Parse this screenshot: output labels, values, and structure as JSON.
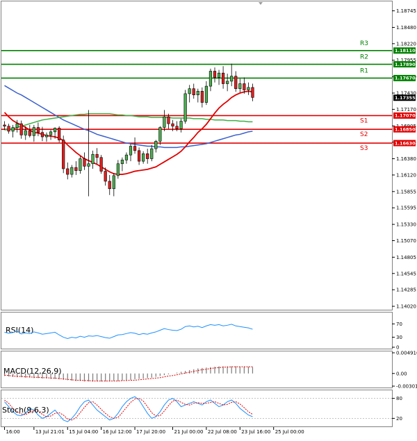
{
  "chart_data": {
    "type": "candlestick",
    "price_axis": {
      "ylim": [
        1.13965,
        1.18896
      ],
      "ticks": [
        "1.18745",
        "1.18480",
        "1.18220",
        "1.17955",
        "1.17690",
        "1.17430",
        "1.17170",
        "1.16905",
        "1.16645",
        "1.16380",
        "1.16120",
        "1.15855",
        "1.15595",
        "1.15330",
        "1.15070",
        "1.14805",
        "1.14545",
        "1.14285",
        "1.14020"
      ],
      "current_price": "1.17355"
    },
    "time_axis": {
      "labels": [
        "16:00",
        "13 Jul 21:01",
        "15 Jul 04:00",
        "16 Jul 12:00",
        "17 Jul 20:00",
        "21 Jul 00:00",
        "22 Jul 08:00",
        "23 Jul 16:00",
        "25 Jul 00:00"
      ],
      "label_bars": [
        0,
        7,
        15,
        23,
        31,
        40,
        48,
        56,
        64
      ]
    },
    "levels": [
      {
        "name": "R3",
        "value": 1.1811,
        "value_label": "1.18110",
        "color": "#008000"
      },
      {
        "name": "R2",
        "value": 1.1789,
        "value_label": "1.17890",
        "color": "#008000"
      },
      {
        "name": "R1",
        "value": 1.1767,
        "value_label": "1.17670",
        "color": "#008000"
      },
      {
        "name": "S1",
        "value": 1.1707,
        "value_label": "1.17070",
        "color": "#e00000"
      },
      {
        "name": "S2",
        "value": 1.1685,
        "value_label": "1.16850",
        "color": "#e00000"
      },
      {
        "name": "S3",
        "value": 1.1663,
        "value_label": "1.16630",
        "color": "#e00000"
      }
    ],
    "candles": [
      [
        1.1692,
        1.1698,
        1.1684,
        1.169
      ],
      [
        1.169,
        1.1694,
        1.1678,
        1.1682
      ],
      [
        1.1682,
        1.1692,
        1.1672,
        1.1688
      ],
      [
        1.1688,
        1.17,
        1.168,
        1.1694
      ],
      [
        1.1694,
        1.1699,
        1.167,
        1.1676
      ],
      [
        1.1676,
        1.169,
        1.1668,
        1.1683
      ],
      [
        1.1683,
        1.1692,
        1.1672,
        1.1675
      ],
      [
        1.1675,
        1.1692,
        1.1665,
        1.1688
      ],
      [
        1.1688,
        1.1696,
        1.1674,
        1.168
      ],
      [
        1.168,
        1.1689,
        1.1666,
        1.1673
      ],
      [
        1.1673,
        1.168,
        1.1665,
        1.1676
      ],
      [
        1.1676,
        1.1684,
        1.1668,
        1.1681
      ],
      [
        1.1681,
        1.1688,
        1.167,
        1.1687
      ],
      [
        1.1687,
        1.169,
        1.1664,
        1.1668
      ],
      [
        1.1668,
        1.1675,
        1.1615,
        1.1622
      ],
      [
        1.1622,
        1.1632,
        1.1605,
        1.1613
      ],
      [
        1.1613,
        1.1628,
        1.1608,
        1.1624
      ],
      [
        1.1624,
        1.1634,
        1.1612,
        1.1619
      ],
      [
        1.1619,
        1.1642,
        1.1614,
        1.1638
      ],
      [
        1.1638,
        1.1648,
        1.162,
        1.1626
      ],
      [
        1.1626,
        1.1716,
        1.1578,
        1.163
      ],
      [
        1.163,
        1.1651,
        1.1622,
        1.1645
      ],
      [
        1.1645,
        1.1655,
        1.163,
        1.164
      ],
      [
        1.164,
        1.1644,
        1.1614,
        1.1618
      ],
      [
        1.1618,
        1.1624,
        1.1595,
        1.1602
      ],
      [
        1.1602,
        1.1612,
        1.158,
        1.159
      ],
      [
        1.159,
        1.1615,
        1.1578,
        1.1611
      ],
      [
        1.1611,
        1.1636,
        1.1606,
        1.163
      ],
      [
        1.163,
        1.164,
        1.1618,
        1.1636
      ],
      [
        1.1636,
        1.1648,
        1.163,
        1.1644
      ],
      [
        1.1644,
        1.1662,
        1.1634,
        1.1658
      ],
      [
        1.1658,
        1.1672,
        1.1646,
        1.1651
      ],
      [
        1.1651,
        1.1656,
        1.1628,
        1.1634
      ],
      [
        1.1634,
        1.165,
        1.163,
        1.1646
      ],
      [
        1.1646,
        1.1654,
        1.163,
        1.1638
      ],
      [
        1.1638,
        1.166,
        1.1634,
        1.1654
      ],
      [
        1.1654,
        1.1668,
        1.1648,
        1.1666
      ],
      [
        1.1666,
        1.169,
        1.166,
        1.1688
      ],
      [
        1.1688,
        1.1716,
        1.1682,
        1.1705
      ],
      [
        1.1705,
        1.171,
        1.1686,
        1.1694
      ],
      [
        1.1694,
        1.17,
        1.1682,
        1.169
      ],
      [
        1.169,
        1.1698,
        1.1682,
        1.1686
      ],
      [
        1.1686,
        1.1702,
        1.168,
        1.1698
      ],
      [
        1.1698,
        1.1748,
        1.1694,
        1.1742
      ],
      [
        1.1742,
        1.1756,
        1.1728,
        1.175
      ],
      [
        1.175,
        1.1758,
        1.1734,
        1.174
      ],
      [
        1.174,
        1.175,
        1.1728,
        1.1746
      ],
      [
        1.1746,
        1.1752,
        1.172,
        1.1728
      ],
      [
        1.1728,
        1.1762,
        1.1724,
        1.1754
      ],
      [
        1.1754,
        1.1782,
        1.1746,
        1.1778
      ],
      [
        1.1778,
        1.1784,
        1.176,
        1.1768
      ],
      [
        1.1768,
        1.178,
        1.1756,
        1.1775
      ],
      [
        1.1775,
        1.1786,
        1.175,
        1.1758
      ],
      [
        1.1758,
        1.1774,
        1.1746,
        1.1762
      ],
      [
        1.1762,
        1.179,
        1.1754,
        1.177
      ],
      [
        1.177,
        1.1778,
        1.1745,
        1.175
      ],
      [
        1.175,
        1.1766,
        1.1744,
        1.1758
      ],
      [
        1.1758,
        1.1768,
        1.1742,
        1.1748
      ],
      [
        1.1748,
        1.176,
        1.174,
        1.1752
      ],
      [
        1.1752,
        1.1758,
        1.173,
        1.1736
      ]
    ],
    "moving_averages": {
      "red": [
        1.1712,
        1.1705,
        1.1699,
        1.1695,
        1.1692,
        1.1688,
        1.1684,
        1.168,
        1.1679,
        1.1677,
        1.1675,
        1.1674,
        1.1673,
        1.1671,
        1.1667,
        1.166,
        1.1654,
        1.1648,
        1.1643,
        1.1638,
        1.1635,
        1.1632,
        1.1629,
        1.1625,
        1.1621,
        1.1617,
        1.1614,
        1.1613,
        1.1613,
        1.1614,
        1.1616,
        1.1618,
        1.1619,
        1.162,
        1.1621,
        1.1623,
        1.1625,
        1.1629,
        1.1633,
        1.1637,
        1.1641,
        1.1645,
        1.165,
        1.1657,
        1.1665,
        1.1672,
        1.168,
        1.1686,
        1.1693,
        1.1702,
        1.1711,
        1.1719,
        1.1725,
        1.173,
        1.1736,
        1.174,
        1.1743,
        1.1745,
        1.1746,
        1.1745
      ],
      "green": [
        1.1684,
        1.1685,
        1.1686,
        1.1688,
        1.169,
        1.1692,
        1.1694,
        1.1696,
        1.1698,
        1.17,
        1.1701,
        1.1702,
        1.1703,
        1.1704,
        1.1705,
        1.1706,
        1.1707,
        1.1708,
        1.1709,
        1.1709,
        1.171,
        1.171,
        1.171,
        1.171,
        1.171,
        1.171,
        1.1709,
        1.1708,
        1.1708,
        1.1707,
        1.1707,
        1.1706,
        1.1705,
        1.1705,
        1.1705,
        1.1704,
        1.1704,
        1.1704,
        1.1704,
        1.1704,
        1.1703,
        1.1703,
        1.1703,
        1.1703,
        1.1703,
        1.1702,
        1.1702,
        1.1702,
        1.1701,
        1.1701,
        1.17,
        1.17,
        1.17,
        1.1699,
        1.1699,
        1.1699,
        1.1698,
        1.1698,
        1.1697,
        1.1697
      ],
      "blue": [
        1.1755,
        1.1751,
        1.1747,
        1.1743,
        1.174,
        1.1736,
        1.1732,
        1.1728,
        1.1724,
        1.172,
        1.1716,
        1.1712,
        1.1708,
        1.1704,
        1.17,
        1.1697,
        1.1694,
        1.1691,
        1.1688,
        1.1685,
        1.1683,
        1.168,
        1.1677,
        1.1675,
        1.1673,
        1.1671,
        1.1669,
        1.1667,
        1.1665,
        1.1663,
        1.1662,
        1.1661,
        1.166,
        1.1659,
        1.1658,
        1.1658,
        1.1657,
        1.1657,
        1.1656,
        1.1656,
        1.1656,
        1.1656,
        1.1657,
        1.1657,
        1.1658,
        1.1659,
        1.166,
        1.1661,
        1.1662,
        1.1664,
        1.1666,
        1.1668,
        1.167,
        1.1672,
        1.1674,
        1.1676,
        1.1677,
        1.1679,
        1.1681,
        1.1682
      ]
    },
    "rsi": {
      "label": "RSI(14)",
      "ticks": [
        "70",
        "30",
        "0"
      ],
      "ylim": [
        0,
        100
      ],
      "values": [
        45,
        42,
        44,
        48,
        40,
        43,
        41,
        46,
        43,
        39,
        41,
        43,
        45,
        37,
        30,
        26,
        30,
        28,
        33,
        30,
        34,
        33,
        35,
        32,
        29,
        27,
        32,
        37,
        38,
        41,
        44,
        42,
        38,
        41,
        39,
        43,
        46,
        51,
        56,
        53,
        51,
        50,
        54,
        62,
        64,
        61,
        63,
        59,
        64,
        68,
        66,
        68,
        64,
        66,
        69,
        64,
        62,
        60,
        58,
        54
      ]
    },
    "macd": {
      "label": "MACD(12,26,9)",
      "ticks": [
        "0.004916",
        "0.00",
        "-0.003012"
      ],
      "ylim": [
        -0.003012,
        0.004916
      ],
      "histogram": [
        -0.0006,
        -0.0007,
        -0.0008,
        -0.0009,
        -0.0009,
        -0.001,
        -0.001,
        -0.0011,
        -0.0011,
        -0.0012,
        -0.0012,
        -0.0013,
        -0.0013,
        -0.0014,
        -0.0015,
        -0.0016,
        -0.0017,
        -0.0018,
        -0.0018,
        -0.0019,
        -0.0019,
        -0.0019,
        -0.0019,
        -0.0019,
        -0.0019,
        -0.0019,
        -0.0018,
        -0.0018,
        -0.0017,
        -0.0016,
        -0.0015,
        -0.0014,
        -0.0013,
        -0.0012,
        -0.0011,
        -0.001,
        -0.0008,
        -0.0006,
        -0.0004,
        -0.0002,
        0.0,
        0.0002,
        0.0004,
        0.0006,
        0.0008,
        0.001,
        0.0012,
        0.0013,
        0.0014,
        0.0015,
        0.0016,
        0.0017,
        0.0017,
        0.0017,
        0.0017,
        0.0017,
        0.0016,
        0.0016,
        0.0016,
        0.0015
      ],
      "signal": [
        -0.0004,
        -0.0005,
        -0.0006,
        -0.0007,
        -0.0007,
        -0.0008,
        -0.0008,
        -0.0009,
        -0.0009,
        -0.001,
        -0.001,
        -0.0011,
        -0.0011,
        -0.0012,
        -0.0013,
        -0.0014,
        -0.0015,
        -0.0016,
        -0.0016,
        -0.0017,
        -0.0017,
        -0.0018,
        -0.0018,
        -0.0018,
        -0.0018,
        -0.0018,
        -0.0018,
        -0.0018,
        -0.0017,
        -0.0017,
        -0.0016,
        -0.0016,
        -0.0015,
        -0.0014,
        -0.0013,
        -0.0012,
        -0.0011,
        -0.001,
        -0.0008,
        -0.0006,
        -0.0005,
        -0.0003,
        -0.0001,
        0.0001,
        0.0003,
        0.0005,
        0.0007,
        0.0009,
        0.001,
        0.0012,
        0.0013,
        0.0014,
        0.0015,
        0.0015,
        0.0016,
        0.0016,
        0.0016,
        0.0016,
        0.0016,
        0.0016
      ]
    },
    "stoch": {
      "label": "Stoch(9,6,3)",
      "ticks": [
        "80",
        "20"
      ],
      "ylim": [
        0,
        100
      ],
      "main": [
        70,
        55,
        40,
        30,
        28,
        35,
        50,
        45,
        30,
        20,
        25,
        35,
        45,
        30,
        15,
        10,
        20,
        35,
        55,
        70,
        75,
        60,
        45,
        35,
        25,
        15,
        20,
        35,
        55,
        70,
        80,
        85,
        75,
        55,
        35,
        20,
        25,
        40,
        60,
        75,
        80,
        70,
        55,
        60,
        65,
        70,
        65,
        60,
        70,
        75,
        65,
        55,
        60,
        70,
        75,
        65,
        50,
        40,
        30,
        25
      ],
      "signal": [
        75,
        65,
        50,
        40,
        33,
        31,
        38,
        43,
        42,
        32,
        25,
        27,
        35,
        37,
        30,
        18,
        15,
        22,
        37,
        53,
        67,
        70,
        60,
        47,
        35,
        25,
        20,
        23,
        37,
        53,
        68,
        78,
        80,
        72,
        55,
        37,
        27,
        28,
        42,
        58,
        72,
        75,
        68,
        62,
        60,
        65,
        67,
        65,
        65,
        68,
        70,
        65,
        60,
        62,
        68,
        70,
        63,
        52,
        40,
        32
      ]
    }
  }
}
